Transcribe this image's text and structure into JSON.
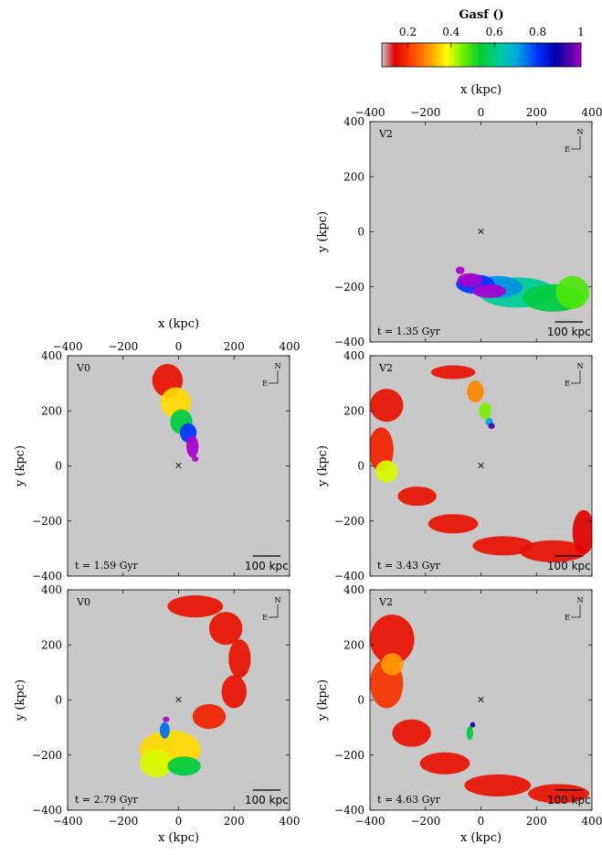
{
  "colorbar": {
    "label": "Gasf ()",
    "ticks": [
      "0.2",
      "0.4",
      "0.6",
      "0.8",
      "1"
    ],
    "tick_values": [
      0.2,
      0.4,
      0.6,
      0.8,
      1.0
    ],
    "range": [
      0.08,
      1.0
    ],
    "stops": [
      {
        "v": 0.08,
        "c": "#c8c8c8"
      },
      {
        "v": 0.14,
        "c": "#e00000"
      },
      {
        "v": 0.22,
        "c": "#ff4400"
      },
      {
        "v": 0.3,
        "c": "#ff9900"
      },
      {
        "v": 0.38,
        "c": "#ffff00"
      },
      {
        "v": 0.46,
        "c": "#66ee00"
      },
      {
        "v": 0.54,
        "c": "#00cc33"
      },
      {
        "v": 0.62,
        "c": "#00cc99"
      },
      {
        "v": 0.7,
        "c": "#00aadd"
      },
      {
        "v": 0.8,
        "c": "#0033ff"
      },
      {
        "v": 0.88,
        "c": "#0000aa"
      },
      {
        "v": 0.95,
        "c": "#5500aa"
      },
      {
        "v": 1.0,
        "c": "#aa00cc"
      }
    ]
  },
  "chart_data": [
    {
      "type": "heatmap",
      "panel": "V2",
      "time_label": "t = 1.35 Gyr",
      "xlabel": "x (kpc)",
      "ylabel": "y (kpc)",
      "xlim": [
        -400,
        400
      ],
      "ylim": [
        -400,
        400
      ],
      "xticks": [
        "−400",
        "−200",
        "0",
        "200",
        "400"
      ],
      "yticks": [
        "400",
        "200",
        "0",
        "−200",
        "−400"
      ],
      "scale_bar": "100 kpc",
      "compass": {
        "n": "N",
        "e": "E"
      },
      "center_marker": [
        0,
        0
      ],
      "blobs": [
        {
          "x": 130,
          "y": -220,
          "rx": 140,
          "ry": 55,
          "v": 0.62
        },
        {
          "x": 260,
          "y": -240,
          "rx": 110,
          "ry": 50,
          "v": 0.55
        },
        {
          "x": 60,
          "y": -200,
          "rx": 90,
          "ry": 40,
          "v": 0.72
        },
        {
          "x": 330,
          "y": -220,
          "rx": 60,
          "ry": 60,
          "v": 0.48
        },
        {
          "x": -20,
          "y": -190,
          "rx": 70,
          "ry": 35,
          "v": 0.8
        },
        {
          "x": -40,
          "y": -175,
          "rx": 45,
          "ry": 25,
          "v": 1.0
        },
        {
          "x": 30,
          "y": -215,
          "rx": 60,
          "ry": 25,
          "v": 1.0
        },
        {
          "x": -75,
          "y": -140,
          "rx": 16,
          "ry": 14,
          "v": 1.0
        }
      ]
    },
    {
      "type": "heatmap",
      "panel": "V0",
      "time_label": "t = 1.59 Gyr",
      "xlabel": "x (kpc)",
      "ylabel": "y (kpc)",
      "xlim": [
        -400,
        400
      ],
      "ylim": [
        -400,
        400
      ],
      "xticks": [
        "−400",
        "−200",
        "0",
        "200",
        "400"
      ],
      "yticks": [
        "400",
        "200",
        "0",
        "−200",
        "−400"
      ],
      "scale_bar": "100 kpc",
      "compass": {
        "n": "N",
        "e": "E"
      },
      "center_marker": [
        0,
        0
      ],
      "blobs": [
        {
          "x": -40,
          "y": 310,
          "rx": 55,
          "ry": 60,
          "v": 0.16
        },
        {
          "x": -10,
          "y": 230,
          "rx": 55,
          "ry": 55,
          "v": 0.35
        },
        {
          "x": 10,
          "y": 160,
          "rx": 40,
          "ry": 45,
          "v": 0.55
        },
        {
          "x": 35,
          "y": 120,
          "rx": 30,
          "ry": 35,
          "v": 0.8
        },
        {
          "x": 50,
          "y": 70,
          "rx": 22,
          "ry": 40,
          "v": 1.0
        },
        {
          "x": 60,
          "y": 25,
          "rx": 12,
          "ry": 10,
          "v": 1.0
        }
      ]
    },
    {
      "type": "heatmap",
      "panel": "V2",
      "time_label": "t = 3.43 Gyr",
      "xlabel": "x (kpc)",
      "ylabel": "y (kpc)",
      "xlim": [
        -400,
        400
      ],
      "ylim": [
        -400,
        400
      ],
      "xticks": [
        "−400",
        "−200",
        "0",
        "200",
        "400"
      ],
      "yticks": [
        "400",
        "200",
        "0",
        "−200",
        "−400"
      ],
      "scale_bar": "100 kpc",
      "compass": {
        "n": "N",
        "e": "E"
      },
      "center_marker": [
        0,
        0
      ],
      "blobs": [
        {
          "x": -340,
          "y": 220,
          "rx": 60,
          "ry": 60,
          "v": 0.16
        },
        {
          "x": -360,
          "y": 60,
          "rx": 45,
          "ry": 80,
          "v": 0.18
        },
        {
          "x": -340,
          "y": -20,
          "rx": 40,
          "ry": 40,
          "v": 0.4
        },
        {
          "x": -230,
          "y": -110,
          "rx": 70,
          "ry": 35,
          "v": 0.16
        },
        {
          "x": -100,
          "y": -210,
          "rx": 90,
          "ry": 35,
          "v": 0.16
        },
        {
          "x": 80,
          "y": -290,
          "rx": 110,
          "ry": 35,
          "v": 0.16
        },
        {
          "x": 260,
          "y": -310,
          "rx": 120,
          "ry": 40,
          "v": 0.16
        },
        {
          "x": 370,
          "y": -240,
          "rx": 40,
          "ry": 80,
          "v": 0.14
        },
        {
          "x": -100,
          "y": 340,
          "rx": 80,
          "ry": 25,
          "v": 0.16
        },
        {
          "x": -20,
          "y": 270,
          "rx": 30,
          "ry": 40,
          "v": 0.28
        },
        {
          "x": 15,
          "y": 200,
          "rx": 22,
          "ry": 30,
          "v": 0.45
        },
        {
          "x": 30,
          "y": 160,
          "rx": 14,
          "ry": 14,
          "v": 0.7
        },
        {
          "x": 38,
          "y": 145,
          "rx": 12,
          "ry": 11,
          "v": 0.95
        }
      ]
    },
    {
      "type": "heatmap",
      "panel": "V0",
      "time_label": "t = 2.79 Gyr",
      "xlabel": "x (kpc)",
      "ylabel": "y (kpc)",
      "xlim": [
        -400,
        400
      ],
      "ylim": [
        -400,
        400
      ],
      "xticks": [
        "−400",
        "−200",
        "0",
        "200",
        "400"
      ],
      "yticks": [
        "400",
        "200",
        "0",
        "−200",
        "−400"
      ],
      "scale_bar": "100 kpc",
      "compass": {
        "n": "N",
        "e": "E"
      },
      "center_marker": [
        0,
        0
      ],
      "blobs": [
        {
          "x": 60,
          "y": 340,
          "rx": 100,
          "ry": 40,
          "v": 0.16
        },
        {
          "x": 170,
          "y": 260,
          "rx": 60,
          "ry": 60,
          "v": 0.16
        },
        {
          "x": 220,
          "y": 150,
          "rx": 40,
          "ry": 70,
          "v": 0.16
        },
        {
          "x": 200,
          "y": 30,
          "rx": 45,
          "ry": 60,
          "v": 0.16
        },
        {
          "x": 110,
          "y": -60,
          "rx": 60,
          "ry": 45,
          "v": 0.18
        },
        {
          "x": -30,
          "y": -180,
          "rx": 110,
          "ry": 70,
          "v": 0.35
        },
        {
          "x": -80,
          "y": -230,
          "rx": 60,
          "ry": 50,
          "v": 0.4
        },
        {
          "x": 20,
          "y": -240,
          "rx": 60,
          "ry": 35,
          "v": 0.55
        },
        {
          "x": -50,
          "y": -110,
          "rx": 18,
          "ry": 30,
          "v": 0.75
        },
        {
          "x": -45,
          "y": -70,
          "rx": 12,
          "ry": 10,
          "v": 1.0
        }
      ]
    },
    {
      "type": "heatmap",
      "panel": "V2",
      "time_label": "t = 4.63 Gyr",
      "xlabel": "x (kpc)",
      "ylabel": "y (kpc)",
      "xlim": [
        -400,
        400
      ],
      "ylim": [
        -400,
        400
      ],
      "xticks": [
        "−400",
        "−200",
        "0",
        "200",
        "400"
      ],
      "yticks": [
        "400",
        "200",
        "0",
        "−200",
        "−400"
      ],
      "scale_bar": "100 kpc",
      "compass": {
        "n": "N",
        "e": "E"
      },
      "center_marker": [
        0,
        0
      ],
      "blobs": [
        {
          "x": -320,
          "y": 220,
          "rx": 80,
          "ry": 90,
          "v": 0.16
        },
        {
          "x": -340,
          "y": 60,
          "rx": 60,
          "ry": 90,
          "v": 0.2
        },
        {
          "x": -320,
          "y": 130,
          "rx": 40,
          "ry": 40,
          "v": 0.3
        },
        {
          "x": -250,
          "y": -120,
          "rx": 70,
          "ry": 50,
          "v": 0.16
        },
        {
          "x": -130,
          "y": -230,
          "rx": 90,
          "ry": 40,
          "v": 0.16
        },
        {
          "x": 60,
          "y": -310,
          "rx": 120,
          "ry": 40,
          "v": 0.16
        },
        {
          "x": 280,
          "y": -340,
          "rx": 110,
          "ry": 35,
          "v": 0.16
        },
        {
          "x": -40,
          "y": -120,
          "rx": 12,
          "ry": 25,
          "v": 0.55
        },
        {
          "x": -30,
          "y": -90,
          "rx": 9,
          "ry": 10,
          "v": 0.9
        }
      ]
    }
  ]
}
